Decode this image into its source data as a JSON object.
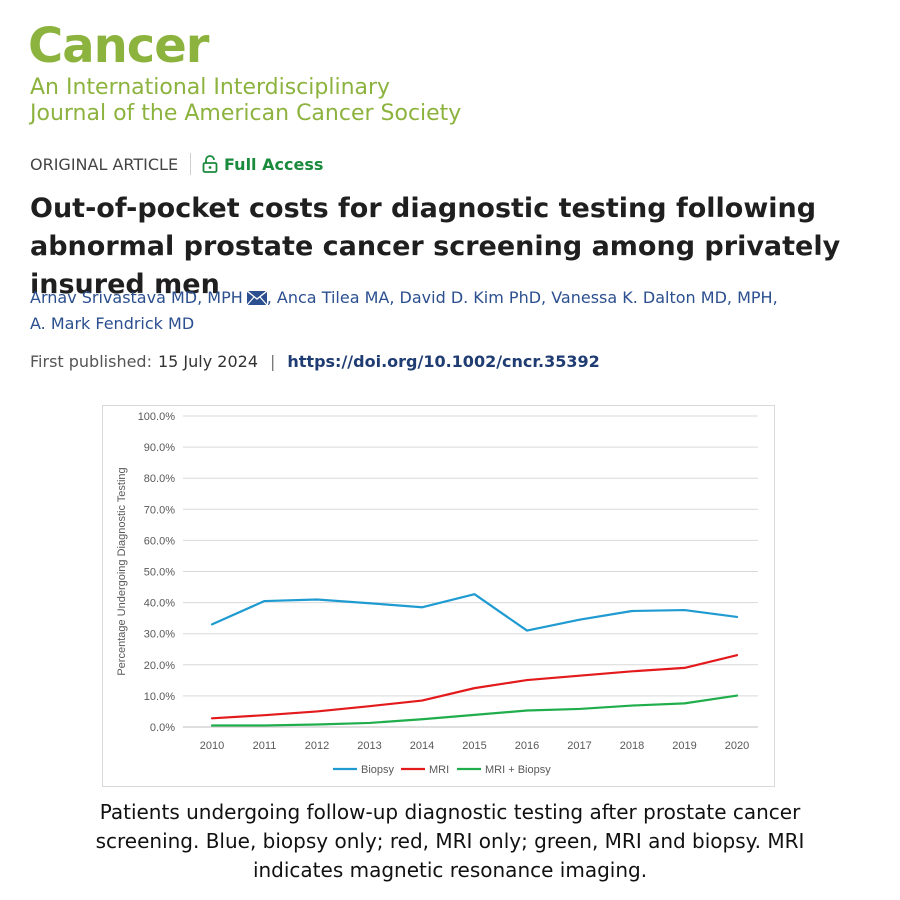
{
  "journal": {
    "title": "Cancer",
    "subtitle_line1": "An International Interdisciplinary",
    "subtitle_line2": "Journal of the American Cancer Society",
    "brand_color": "#8db33f"
  },
  "article": {
    "type": "ORIGINAL ARTICLE",
    "access": "Full Access",
    "title": "Out-of-pocket costs for diagnostic testing following abnormal prostate cancer screening among privately insured men",
    "authors": [
      "Arnav Srivastava MD, MPH",
      "Anca Tilea MA",
      "David D. Kim PhD",
      "Vanessa K. Dalton MD, MPH",
      "A. Mark Fendrick MD"
    ],
    "published_label": "First published:",
    "published_date": "15 July 2024",
    "doi": "https://doi.org/10.1002/cncr.35392"
  },
  "chart_data": {
    "type": "line",
    "title": "",
    "xlabel": "",
    "ylabel": "Percentage Undergoing Diagnostic Testing",
    "x": [
      "2010",
      "2011",
      "2012",
      "2013",
      "2014",
      "2015",
      "2016",
      "2017",
      "2018",
      "2019",
      "2020"
    ],
    "yticks": [
      "0.0%",
      "10.0%",
      "20.0%",
      "30.0%",
      "40.0%",
      "50.0%",
      "60.0%",
      "70.0%",
      "80.0%",
      "90.0%",
      "100.0%"
    ],
    "ylim": [
      0,
      100
    ],
    "grid": true,
    "legend_position": "bottom",
    "series": [
      {
        "name": "Biopsy",
        "color": "#1f9bd1",
        "values": [
          33.0,
          40.5,
          41.0,
          39.8,
          38.5,
          42.7,
          31.0,
          34.5,
          37.3,
          37.6,
          35.4
        ]
      },
      {
        "name": "MRI",
        "color": "#e31a1c",
        "values": [
          2.8,
          3.8,
          5.0,
          6.7,
          8.5,
          12.5,
          15.1,
          16.5,
          17.9,
          19.0,
          23.1
        ]
      },
      {
        "name": "MRI + Biopsy",
        "color": "#1fae4b",
        "values": [
          0.5,
          0.5,
          0.8,
          1.3,
          2.5,
          3.9,
          5.3,
          5.8,
          6.9,
          7.6,
          10.1
        ]
      }
    ]
  },
  "caption": "Patients undergoing follow-up diagnostic testing after prostate cancer screening. Blue, biopsy only; red, MRI only; green, MRI and biopsy. MRI indicates magnetic resonance imaging."
}
